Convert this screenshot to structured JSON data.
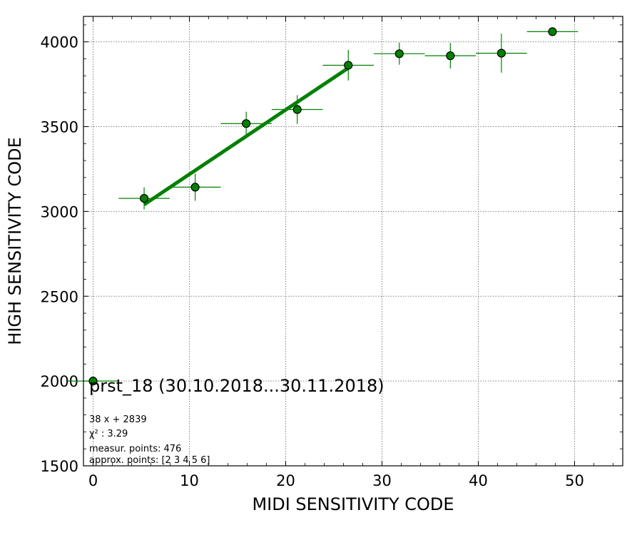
{
  "chart_data": {
    "type": "scatter",
    "xlabel": "MIDI SENSITIVITY CODE",
    "ylabel": "HIGH SENSITIVITY CODE",
    "xlim": [
      -1,
      55
    ],
    "ylim": [
      1500,
      4150
    ],
    "x_ticks": [
      0,
      10,
      20,
      30,
      40,
      50
    ],
    "y_ticks": [
      1500,
      2000,
      2500,
      3000,
      3500,
      4000
    ],
    "grid": true,
    "colors": {
      "points": "#008000",
      "fit": "#008000",
      "grid": "#808080"
    },
    "points": [
      {
        "x": 0.0,
        "y": 2000,
        "xerr": 2.65,
        "yerr": 0
      },
      {
        "x": 5.3,
        "y": 3077,
        "xerr": 2.65,
        "yerr": 65
      },
      {
        "x": 10.6,
        "y": 3143,
        "xerr": 2.65,
        "yerr": 80
      },
      {
        "x": 15.9,
        "y": 3518,
        "xerr": 2.65,
        "yerr": 70
      },
      {
        "x": 21.2,
        "y": 3601,
        "xerr": 2.65,
        "yerr": 85
      },
      {
        "x": 26.5,
        "y": 3862,
        "xerr": 2.65,
        "yerr": 90
      },
      {
        "x": 31.8,
        "y": 3930,
        "xerr": 2.65,
        "yerr": 65
      },
      {
        "x": 37.1,
        "y": 3918,
        "xerr": 2.65,
        "yerr": 75
      },
      {
        "x": 42.4,
        "y": 3933,
        "xerr": 2.65,
        "yerr": 115
      },
      {
        "x": 47.7,
        "y": 4060,
        "xerr": 2.65,
        "yerr": 0
      }
    ],
    "fit": {
      "slope": 38,
      "intercept": 2839,
      "x_range": [
        5.3,
        26.5
      ]
    },
    "annotations": {
      "title": "prst_18 (30.10.2018...30.11.2018)",
      "fit_equation": "38 x + 2839",
      "chi2_label": "χ² : 3.29",
      "measured_points": "measur. points: 476",
      "approx_points": "approx. points: [2 3 4 5 6]"
    }
  }
}
